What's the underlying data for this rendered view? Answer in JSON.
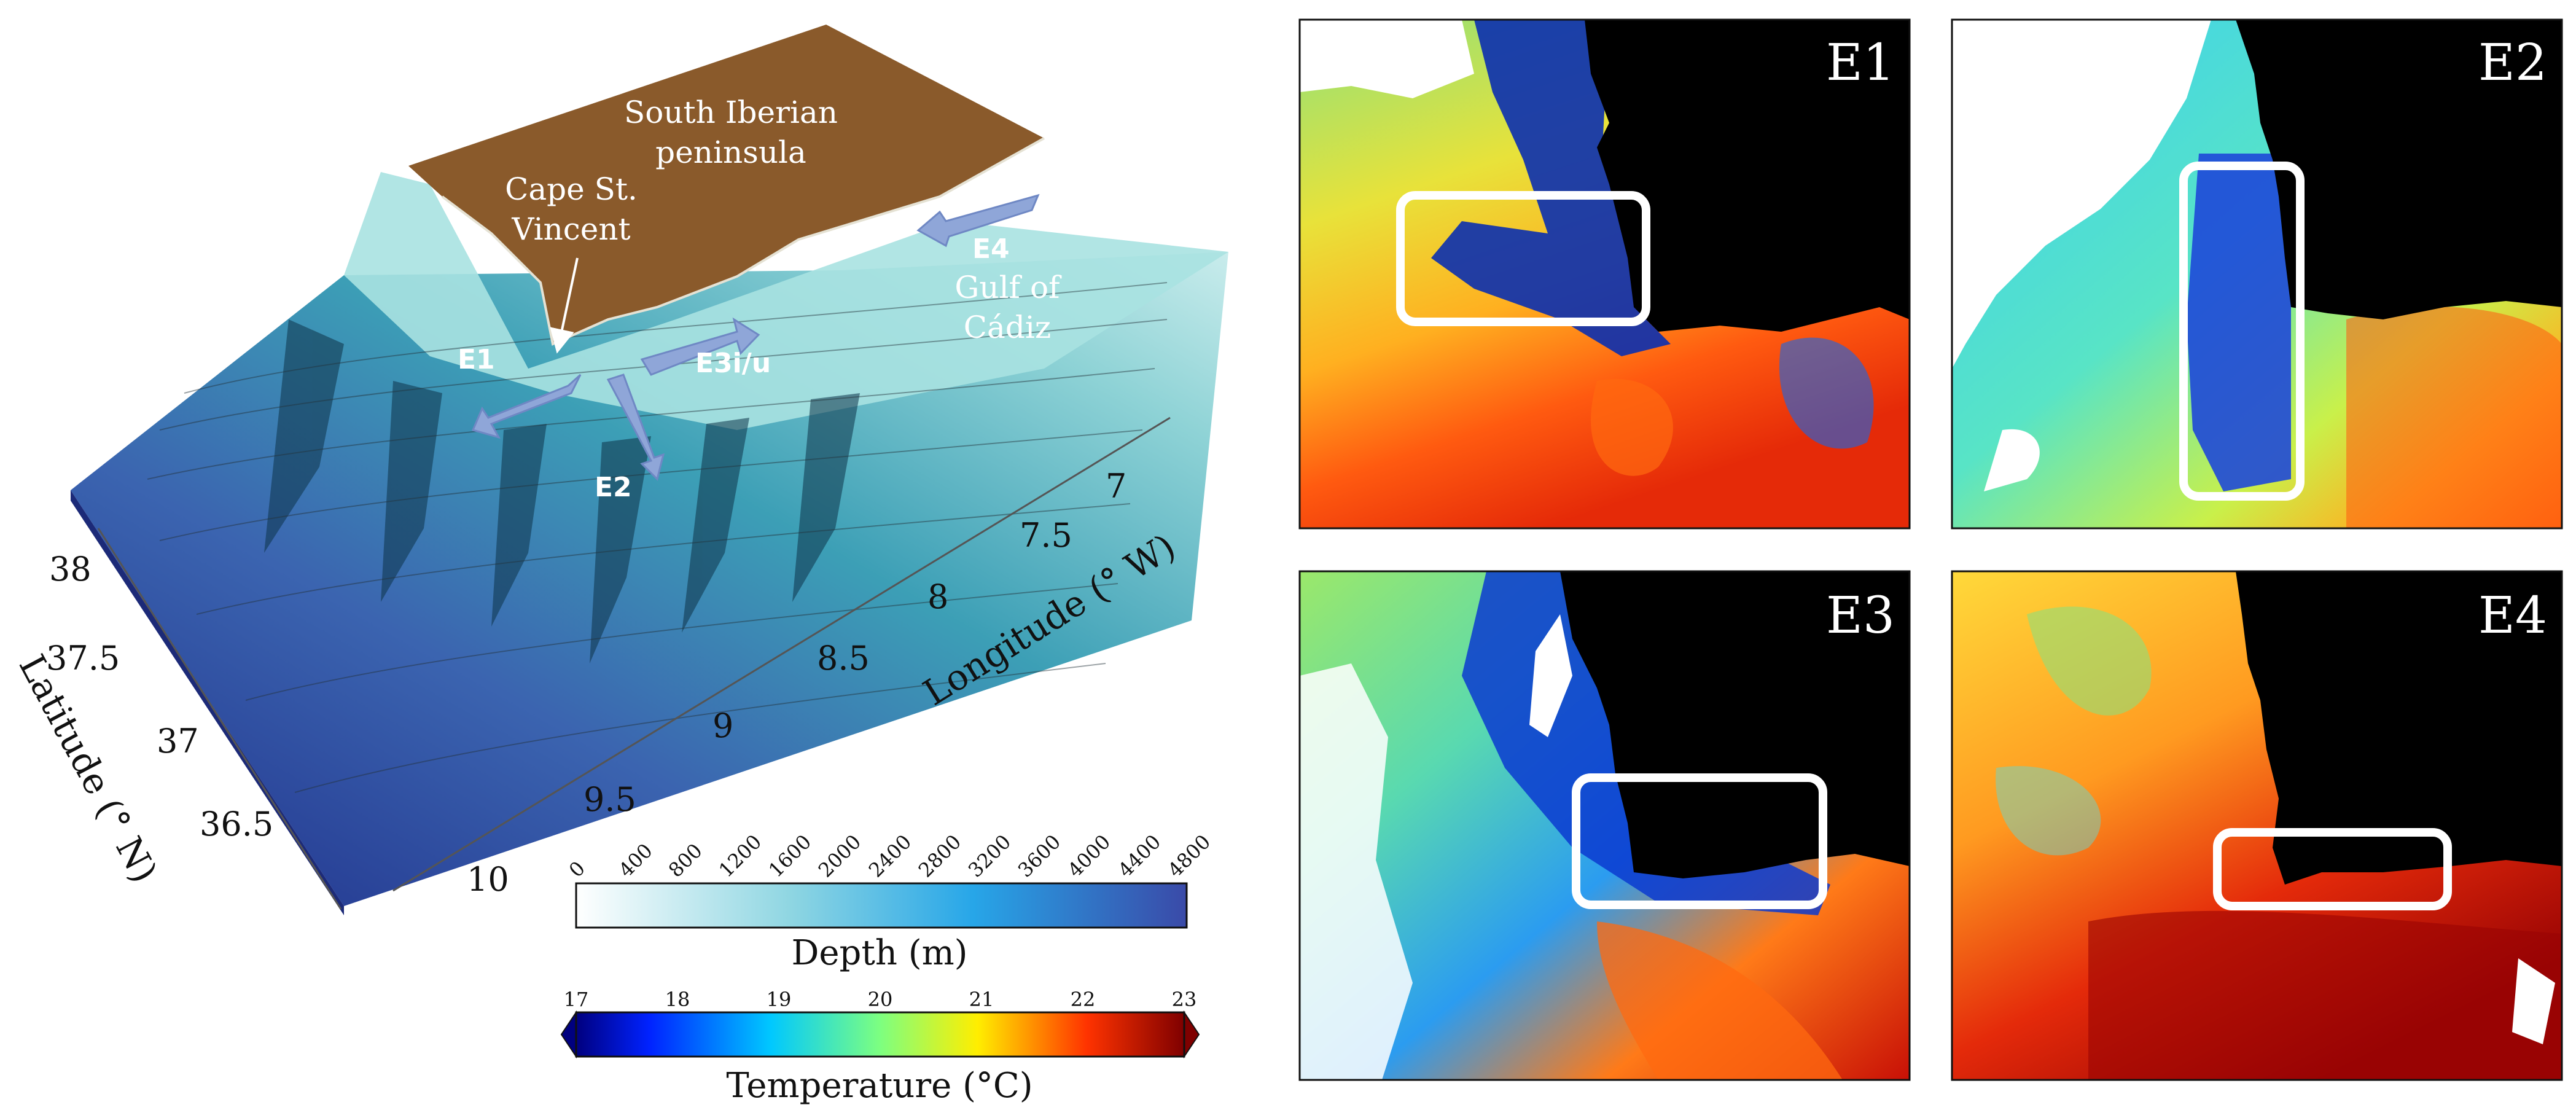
{
  "relief_map": {
    "place_labels": {
      "peninsula_line1": "South Iberian",
      "peninsula_line2": "peninsula",
      "cape_line1": "Cape St.",
      "cape_line2": "Vincent",
      "gulf_line1": "Gulf of",
      "gulf_line2": "Cádiz"
    },
    "sites": [
      "E1",
      "E2",
      "E3i/u",
      "E4"
    ],
    "latitude_axis": {
      "title": "Latitude (° N)",
      "ticks": [
        "38",
        "37.5",
        "37",
        "36.5"
      ]
    },
    "longitude_axis": {
      "title": "Longitude (° W)",
      "ticks": [
        "10",
        "9.5",
        "9",
        "8.5",
        "8",
        "7.5",
        "7"
      ]
    },
    "colors": {
      "land": "#8a5a2b",
      "shelf": "#c9ecec",
      "deep": "#2e3f9a",
      "arrow": "#8fa6d8"
    }
  },
  "depth_colorbar": {
    "title": "Depth (m)",
    "ticks": [
      "0",
      "400",
      "800",
      "1200",
      "1600",
      "2000",
      "2400",
      "2800",
      "3200",
      "3600",
      "4000",
      "4400",
      "4800"
    ],
    "colors": [
      "#ffffff",
      "#7fd0e0",
      "#2aa8e6",
      "#3a4aa8"
    ]
  },
  "temperature_colorbar": {
    "title": "Temperature (°C)",
    "ticks": [
      "17",
      "18",
      "19",
      "20",
      "21",
      "22",
      "23"
    ],
    "colors": [
      "#00007f",
      "#0044ff",
      "#00ccff",
      "#7fff7f",
      "#ffee00",
      "#ff4400",
      "#7f0000"
    ]
  },
  "sst_panels": [
    {
      "label": "E1"
    },
    {
      "label": "E2"
    },
    {
      "label": "E3"
    },
    {
      "label": "E4"
    }
  ]
}
